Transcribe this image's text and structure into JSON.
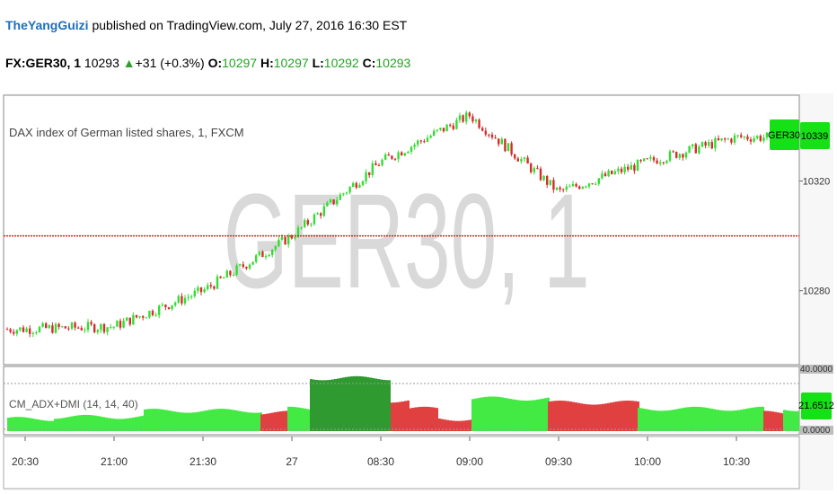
{
  "publish": {
    "author": "TheYangGuizi",
    "text": " published on TradingView.com, July 27, 2016 16:30 EST"
  },
  "quote": {
    "symbol": "FX:GER30, 1",
    "last": "10293",
    "change": "+31 (+0.3%)",
    "o_label": "O:",
    "o": "10297",
    "h_label": "H:",
    "h": "10297",
    "l_label": "L:",
    "l": "10292",
    "c_label": "C:",
    "c": "10293"
  },
  "chart": {
    "series_title": "DAX index of German listed shares, 1, FXCM",
    "watermark": "GER30, 1",
    "symbol_badge": "GER30",
    "price_badge": "10339",
    "indicator_title": "CM_ADX+DMI (14, 14, 40)",
    "indicator_badge": "21.6512",
    "indicator_top_label": "40.0000",
    "indicator_bottom_label": "0.0000"
  },
  "colors": {
    "up": "#33dd33",
    "down": "#d62c2c",
    "badge": "#16e016",
    "hline": "#e02020",
    "dark_green": "#2f9a2f",
    "light_green": "#44ea44",
    "red_area": "#e04040"
  },
  "chart_data": {
    "type": "candlestick",
    "price_axis": {
      "ticks": [
        "10339",
        "10320",
        "10280"
      ],
      "reference_line": 10300
    },
    "x_ticks": [
      "20:30",
      "21:00",
      "21:30",
      "27",
      "08:30",
      "09:00",
      "09:30",
      "10:00",
      "10:30"
    ],
    "close_path": [
      {
        "x": "20:30",
        "y": 10266
      },
      {
        "x": "21:00",
        "y": 10267
      },
      {
        "x": "21:30",
        "y": 10280
      },
      {
        "x": "27",
        "y": 10300
      },
      {
        "x": "08:30",
        "y": 10327
      },
      {
        "x": "09:00",
        "y": 10344
      },
      {
        "x": "09:30",
        "y": 10316
      },
      {
        "x": "10:00",
        "y": 10327
      },
      {
        "x": "10:30",
        "y": 10336
      }
    ],
    "indicator": {
      "name": "CM_ADX+DMI",
      "params": "14, 14, 40",
      "last": 21.6512,
      "levels": [
        40,
        0
      ]
    }
  }
}
